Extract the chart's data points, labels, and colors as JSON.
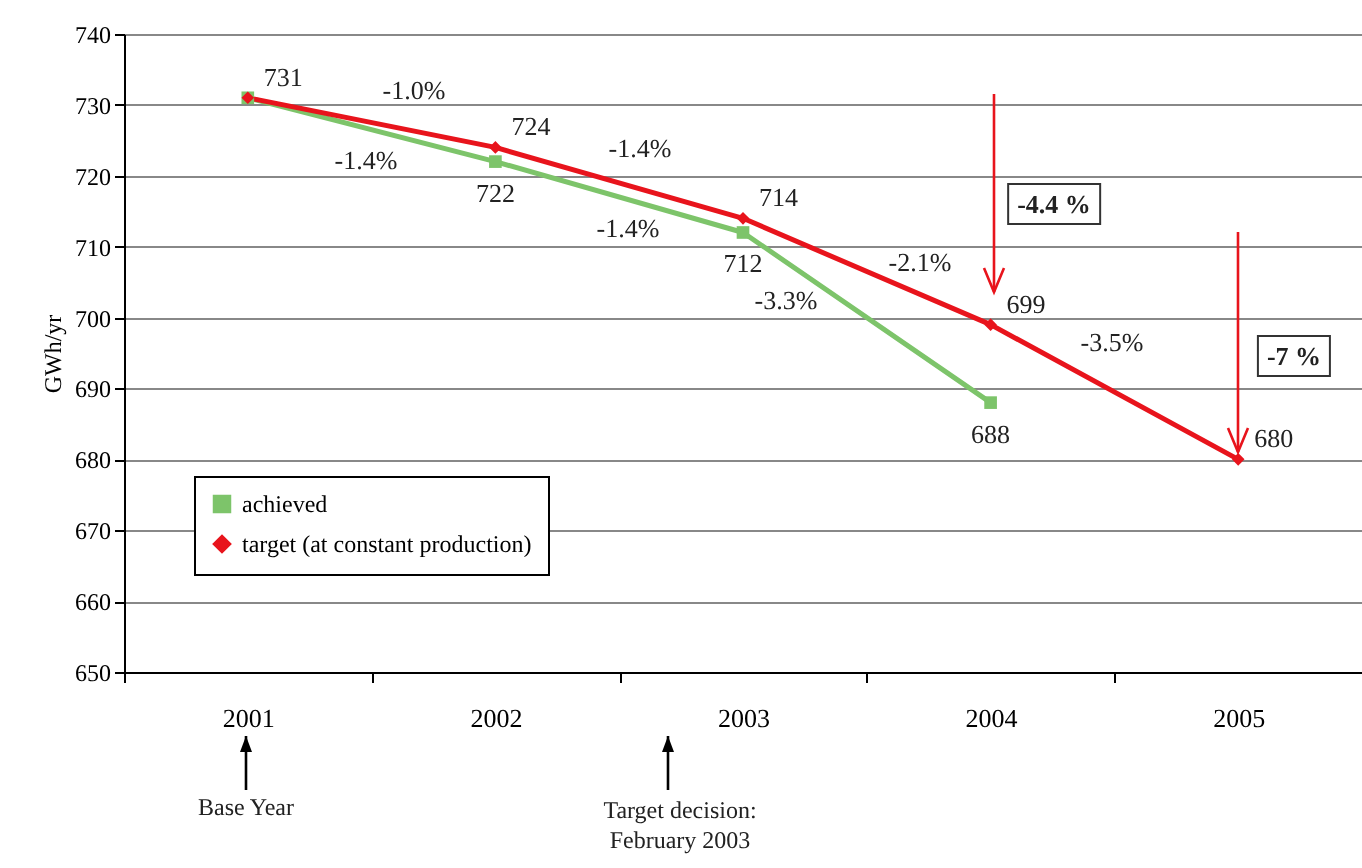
{
  "chart_data": {
    "type": "line",
    "ylabel": "GWh/yr",
    "categories": [
      "2001",
      "2002",
      "2003",
      "2004",
      "2005"
    ],
    "series": [
      {
        "name": "achieved",
        "color": "#7dc46a",
        "marker": "square",
        "values": [
          731,
          722,
          712,
          688,
          null
        ],
        "value_labels": [
          null,
          "722",
          "712",
          "688",
          null
        ]
      },
      {
        "name": "target (at constant production)",
        "color": "#e8141c",
        "marker": "diamond",
        "values": [
          731,
          724,
          714,
          699,
          680
        ],
        "value_labels": [
          "731",
          "724",
          "714",
          "699",
          "680"
        ]
      }
    ],
    "ylim": [
      650,
      740
    ],
    "yticks": [
      650,
      660,
      670,
      680,
      690,
      700,
      710,
      720,
      730,
      740
    ],
    "grid": "y",
    "legend": "bottom left",
    "annotations": [
      "-1.0%",
      "-1.4%",
      "-1.4%",
      "-1.4%",
      "-3.3%",
      "-2.1%",
      "-3.5%",
      "-4.4 %",
      "-7 %",
      "Base Year",
      "Target decision: February 2003"
    ]
  }
}
